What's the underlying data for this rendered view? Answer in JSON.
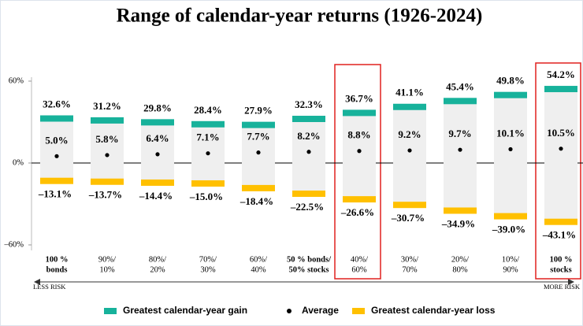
{
  "chart_data": {
    "type": "range",
    "title": "Range of calendar-year returns (1926-2024)",
    "categories": [
      [
        "100 %",
        "bonds"
      ],
      [
        "90%/",
        "10%"
      ],
      [
        "80%/",
        "20%"
      ],
      [
        "70%/",
        "30%"
      ],
      [
        "60%/",
        "40%"
      ],
      [
        "50 % bonds/",
        "50% stocks"
      ],
      [
        "40%/",
        "60%"
      ],
      [
        "30%/",
        "70%"
      ],
      [
        "20%/",
        "80%"
      ],
      [
        "10%/",
        "90%"
      ],
      [
        "100 %",
        "stocks"
      ]
    ],
    "series": [
      {
        "name": "Greatest calendar-year gain",
        "color": "#17b29b",
        "values": [
          32.6,
          31.2,
          29.8,
          28.4,
          27.9,
          32.3,
          36.7,
          41.1,
          45.4,
          49.8,
          54.2
        ],
        "value_labels": [
          "32.6%",
          "31.2%",
          "29.8%",
          "28.4%",
          "27.9%",
          "32.3%",
          "36.7%",
          "41.1%",
          "45.4%",
          "49.8%",
          "54.2%"
        ]
      },
      {
        "name": "Average",
        "color": "#000000",
        "values": [
          5.0,
          5.8,
          6.4,
          7.1,
          7.7,
          8.2,
          8.8,
          9.2,
          9.7,
          10.1,
          10.5
        ],
        "value_labels": [
          "5.0%",
          "5.8%",
          "6.4%",
          "7.1%",
          "7.7%",
          "8.2%",
          "8.8%",
          "9.2%",
          "9.7%",
          "10.1%",
          "10.5%"
        ]
      },
      {
        "name": "Greatest calendar-year loss",
        "color": "#ffc000",
        "values": [
          -13.1,
          -13.7,
          -14.4,
          -15.0,
          -18.4,
          -22.5,
          -26.6,
          -30.7,
          -34.9,
          -39.0,
          -43.1
        ],
        "value_labels": [
          "–13.1%",
          "–13.7%",
          "–14.4%",
          "–15.0%",
          "–18.4%",
          "–22.5%",
          "–26.6%",
          "–30.7%",
          "–34.9%",
          "–39.0%",
          "–43.1%"
        ]
      }
    ],
    "ylim": [
      -60,
      60
    ],
    "yticks": [
      {
        "value": 60,
        "label": "60%"
      },
      {
        "value": 0,
        "label": "0%"
      },
      {
        "value": -60,
        "label": "–60%"
      }
    ],
    "less_risk": "LESS RISK",
    "more_risk": "MORE RISK"
  }
}
